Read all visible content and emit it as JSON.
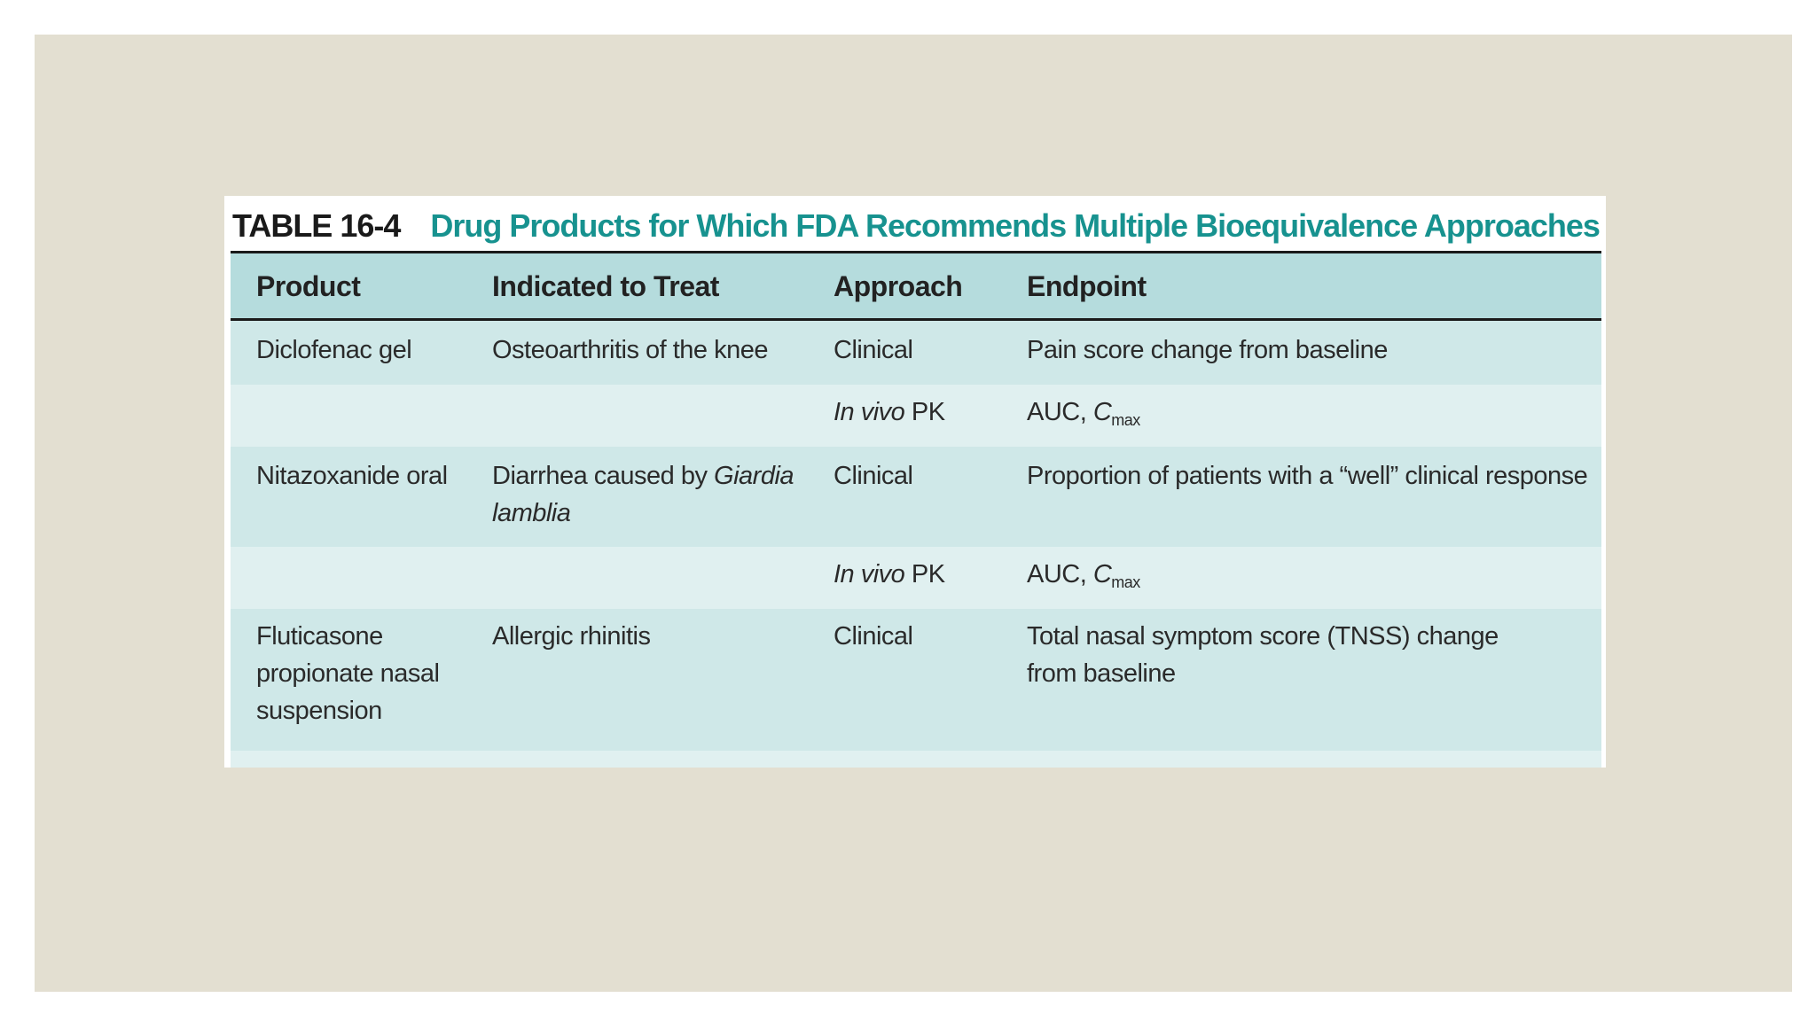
{
  "table": {
    "number": "TABLE 16-4",
    "caption": "Drug Products for Which FDA Recommends Multiple Bioequivalence Approaches",
    "headers": {
      "product": "Product",
      "indication": "Indicated to Treat",
      "approach": "Approach",
      "endpoint": "Endpoint"
    },
    "rows": [
      {
        "product": "Diclofenac gel",
        "indication": "Osteoarthritis of the knee",
        "approach": "Clinical",
        "endpoint": "Pain score change from baseline"
      },
      {
        "product": "",
        "indication": "",
        "approach_italic": "In vivo",
        "approach_rest": " PK",
        "endpoint_prefix": "AUC, ",
        "endpoint_var": "C",
        "endpoint_sub": "max"
      },
      {
        "product": "Nitazoxanide oral",
        "indication_prefix": "Diarrhea caused by ",
        "indication_italic": "Giardia lamblia",
        "approach": "Clinical",
        "endpoint": "Proportion of patients with a “well” clinical response"
      },
      {
        "product": "",
        "indication": "",
        "approach_italic": "In vivo",
        "approach_rest": " PK",
        "endpoint_prefix": "AUC, ",
        "endpoint_var": "C",
        "endpoint_sub": "max"
      },
      {
        "product": "Fluticasone propionate nasal suspension",
        "indication": "Allergic rhinitis",
        "approach": "Clinical",
        "endpoint": "Total nasal symptom score (TNSS) change from baseline"
      }
    ]
  },
  "colors": {
    "slide_background": "#e3dfd1",
    "caption": "#17928f",
    "header_fill": "#b5dcdd",
    "row_fill_a": "#cfe8e8",
    "row_fill_b": "#e0f0f0"
  }
}
